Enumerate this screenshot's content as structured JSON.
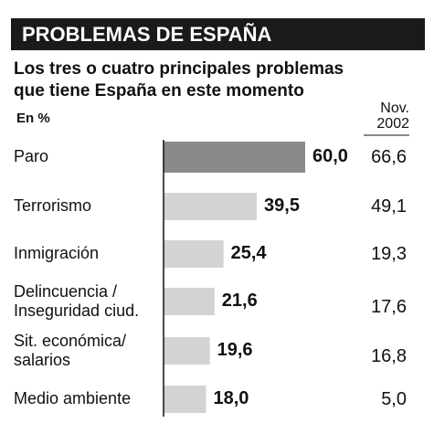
{
  "chart_data": {
    "type": "bar",
    "orientation": "horizontal",
    "title": "PROBLEMAS DE ESPAÑA",
    "subtitle": "Los tres o cuatro principales  problemas\nque tiene España en este momento",
    "categories": [
      "Paro",
      "Terrorismo",
      "Inmigración",
      "Delincuencia /\nInseguridad ciud.",
      "Sit. económica/\nsalarios",
      "Medio ambiente"
    ],
    "xlim": [
      0,
      60
    ],
    "series": [
      {
        "name": "En %",
        "values": [
          60.0,
          39.5,
          25.4,
          21.6,
          19.6,
          18.0
        ],
        "value_labels": [
          "60,0",
          "39,5",
          "25,4",
          "21,6",
          "19,6",
          "18,0"
        ],
        "colors": [
          "#8a8a8a",
          "#d3d3d3",
          "#d3d3d3",
          "#d3d3d3",
          "#d3d3d3",
          "#d3d3d3"
        ]
      },
      {
        "name": "Nov.\n2002",
        "values": [
          66.6,
          49.1,
          19.3,
          17.6,
          16.8,
          5.0
        ],
        "value_labels": [
          "66,6",
          "49,1",
          "19,3",
          "17,6",
          "16,8",
          "5,0"
        ],
        "display": "text"
      }
    ]
  }
}
